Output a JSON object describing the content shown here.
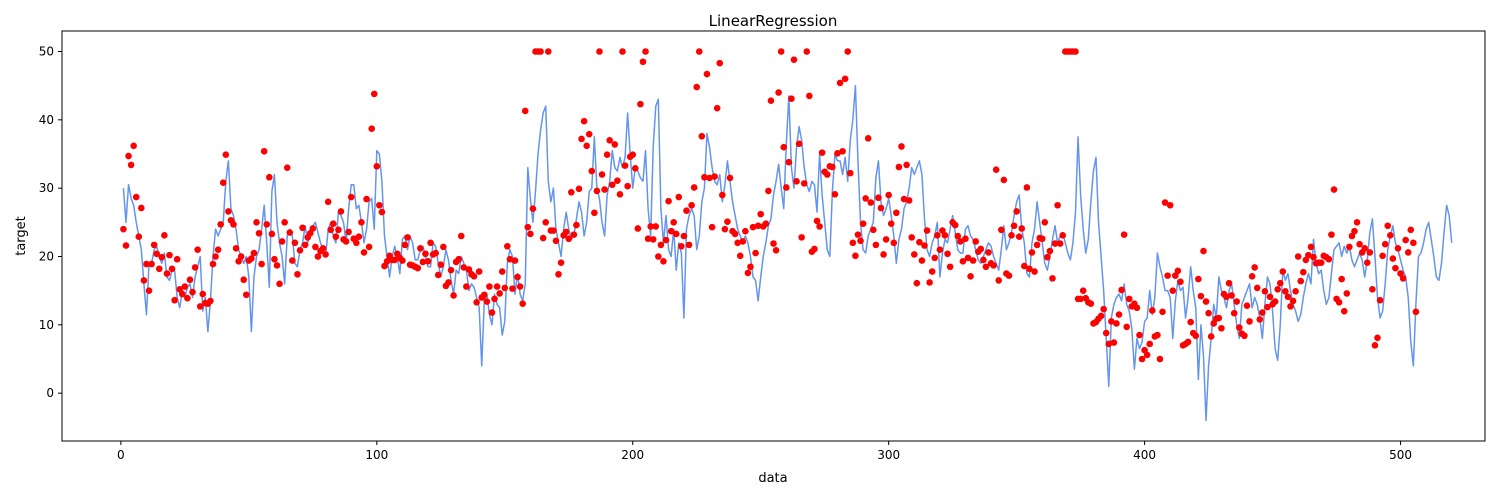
{
  "chart_data": {
    "type": "scatter",
    "title": "LinearRegression",
    "xlabel": "data",
    "ylabel": "target",
    "xlim": [
      -23,
      533
    ],
    "ylim": [
      -7,
      53
    ],
    "xticks": [
      0,
      100,
      200,
      300,
      400,
      500
    ],
    "yticks": [
      0,
      10,
      20,
      30,
      40,
      50
    ],
    "grid": false,
    "colors": {
      "predicted": "#6495ed",
      "actual": "#ff0000"
    },
    "series": [
      {
        "kind": "line",
        "x_start": 1,
        "x_step": 1,
        "values": [
          30.0,
          25.0,
          30.5,
          28.5,
          27.5,
          25.0,
          23.0,
          21.0,
          16.0,
          11.5,
          19.0,
          19.0,
          21.0,
          21.5,
          20.0,
          19.0,
          20.5,
          17.0,
          16.5,
          18.0,
          18.0,
          14.0,
          12.5,
          15.0,
          14.0,
          15.5,
          16.0,
          14.0,
          17.0,
          18.5,
          20.0,
          12.0,
          14.0,
          9.0,
          13.5,
          20.0,
          24.0,
          23.0,
          24.0,
          25.0,
          31.0,
          34.0,
          27.0,
          26.0,
          24.0,
          21.0,
          20.0,
          19.0,
          20.0,
          17.0,
          9.0,
          17.0,
          20.0,
          21.0,
          24.0,
          27.5,
          22.0,
          15.5,
          29.5,
          32.0,
          25.0,
          22.0,
          20.0,
          16.0,
          23.0,
          24.0,
          23.0,
          19.0,
          18.5,
          21.0,
          22.0,
          24.5,
          22.0,
          24.0,
          24.5,
          25.0,
          23.5,
          22.0,
          21.0,
          20.0,
          24.0,
          25.0,
          23.0,
          22.0,
          26.5,
          26.0,
          25.0,
          22.0,
          27.0,
          30.5,
          30.5,
          27.0,
          27.5,
          25.0,
          22.0,
          24.0,
          28.0,
          28.5,
          24.0,
          35.5,
          35.0,
          31.0,
          23.0,
          20.0,
          17.0,
          20.0,
          21.5,
          20.0,
          17.5,
          22.5,
          23.0,
          21.0,
          23.0,
          22.0,
          19.5,
          19.5,
          21.0,
          21.5,
          20.0,
          18.5,
          18.5,
          22.0,
          21.5,
          19.0,
          17.0,
          18.5,
          21.0,
          19.5,
          16.5,
          14.5,
          18.0,
          17.5,
          20.0,
          19.0,
          18.0,
          15.0,
          16.0,
          15.5,
          14.0,
          12.5,
          4.0,
          13.5,
          14.5,
          11.5,
          10.0,
          14.5,
          13.0,
          12.5,
          8.5,
          10.5,
          19.0,
          21.0,
          20.0,
          14.5,
          17.5,
          14.5,
          13.5,
          16.0,
          33.0,
          28.5,
          25.0,
          29.5,
          35.0,
          38.5,
          41.0,
          42.0,
          31.0,
          28.0,
          30.0,
          24.0,
          22.0,
          20.0,
          24.0,
          26.5,
          24.0,
          22.5,
          23.0,
          25.5,
          28.0,
          26.5,
          23.0,
          25.0,
          29.5,
          30.0,
          37.5,
          30.0,
          28.5,
          25.0,
          23.0,
          29.0,
          31.0,
          35.5,
          33.0,
          32.5,
          34.5,
          33.0,
          34.5,
          41.0,
          35.0,
          30.0,
          33.0,
          32.5,
          31.5,
          31.0,
          35.5,
          27.0,
          23.0,
          36.0,
          42.0,
          43.0,
          27.0,
          22.0,
          26.0,
          21.0,
          20.0,
          24.0,
          18.0,
          22.0,
          20.5,
          11.0,
          24.0,
          26.0,
          27.0,
          26.0,
          21.0,
          23.0,
          28.0,
          30.0,
          38.0,
          36.0,
          33.0,
          31.0,
          30.5,
          32.0,
          28.0,
          30.5,
          34.0,
          31.0,
          28.0,
          26.0,
          24.0,
          23.0,
          22.0,
          23.0,
          22.0,
          20.0,
          17.0,
          16.5,
          13.5,
          17.0,
          20.0,
          22.0,
          24.5,
          25.5,
          29.0,
          31.0,
          33.5,
          30.0,
          27.0,
          36.5,
          43.5,
          33.0,
          30.0,
          36.0,
          39.0,
          37.0,
          33.0,
          30.5,
          29.5,
          31.0,
          30.5,
          26.5,
          35.0,
          29.0,
          25.0,
          21.0,
          20.0,
          29.5,
          35.0,
          34.0,
          34.0,
          32.0,
          34.5,
          31.0,
          37.0,
          40.0,
          45.0,
          34.0,
          25.0,
          21.0,
          20.5,
          23.0,
          24.0,
          25.0,
          31.5,
          34.0,
          28.0,
          26.0,
          27.0,
          28.5,
          26.0,
          23.0,
          19.0,
          22.5,
          24.0,
          27.0,
          28.0,
          30.0,
          33.0,
          32.0,
          33.0,
          34.0,
          32.0,
          25.5,
          21.0,
          20.0,
          22.0,
          23.0,
          25.0,
          17.0,
          20.5,
          22.5,
          22.0,
          24.0,
          26.0,
          23.5,
          21.0,
          20.5,
          20.5,
          24.0,
          24.5,
          23.0,
          22.5,
          21.0,
          19.5,
          19.0,
          20.0,
          21.0,
          22.0,
          21.5,
          20.0,
          19.0,
          18.0,
          21.0,
          24.5,
          21.0,
          22.0,
          23.5,
          26.0,
          28.0,
          29.0,
          24.0,
          22.0,
          17.5,
          17.0,
          22.0,
          24.0,
          28.0,
          25.0,
          22.0,
          19.0,
          18.0,
          20.0,
          22.5,
          24.5,
          22.0,
          23.0,
          23.5,
          22.0,
          20.5,
          19.5,
          22.0,
          26.5,
          37.5,
          29.0,
          24.0,
          20.5,
          22.5,
          28.0,
          32.5,
          34.5,
          25.0,
          20.0,
          15.0,
          8.0,
          1.0,
          11.0,
          13.0,
          14.0,
          14.5,
          13.5,
          16.0,
          13.0,
          12.0,
          9.5,
          3.5,
          8.0,
          6.5,
          7.5,
          10.5,
          11.0,
          15.0,
          11.5,
          14.0,
          20.5,
          18.5,
          17.0,
          15.0,
          15.0,
          14.0,
          8.0,
          13.5,
          16.5,
          15.0,
          15.5,
          11.0,
          14.0,
          18.5,
          15.0,
          12.5,
          2.0,
          10.0,
          5.5,
          -4.0,
          4.0,
          8.0,
          13.0,
          11.0,
          17.0,
          15.0,
          14.0,
          12.5,
          15.0,
          16.0,
          13.0,
          10.0,
          8.0,
          13.0,
          14.0,
          15.0,
          16.0,
          12.5,
          14.0,
          13.0,
          11.0,
          8.0,
          13.0,
          17.0,
          16.0,
          12.0,
          6.5,
          4.8,
          10.0,
          18.0,
          16.5,
          17.5,
          15.0,
          13.0,
          12.0,
          10.5,
          11.5,
          14.0,
          16.0,
          17.5,
          16.0,
          22.5,
          19.0,
          17.5,
          18.0,
          15.0,
          13.0,
          14.0,
          17.5,
          21.0,
          21.5,
          22.0,
          20.0,
          21.5,
          20.5,
          21.5,
          19.5,
          18.5,
          19.5,
          20.5,
          19.5,
          17.0,
          19.5,
          23.5,
          25.5,
          20.0,
          14.0,
          11.0,
          12.0,
          16.0,
          21.0,
          23.0,
          24.5,
          22.0,
          21.0,
          19.5,
          18.0,
          17.0,
          14.0,
          7.5,
          4.0,
          13.0,
          20.0,
          20.5,
          22.0,
          24.0,
          25.0,
          22.5,
          20.0,
          17.0,
          16.5,
          19.0,
          23.5,
          27.5,
          26.0,
          22.0
        ]
      },
      {
        "kind": "points",
        "x_start": 1,
        "x_step": 1,
        "values": [
          24.0,
          21.6,
          34.7,
          33.4,
          36.2,
          28.7,
          22.9,
          27.1,
          16.5,
          18.9,
          15.0,
          18.9,
          21.7,
          20.4,
          18.2,
          19.9,
          23.1,
          17.5,
          20.2,
          18.2,
          13.6,
          19.6,
          15.2,
          14.5,
          15.6,
          13.9,
          16.6,
          14.8,
          18.4,
          21.0,
          12.7,
          14.5,
          13.2,
          13.1,
          13.5,
          18.9,
          20.0,
          21.0,
          24.7,
          30.8,
          34.9,
          26.6,
          25.3,
          24.7,
          21.2,
          19.3,
          20.0,
          16.6,
          14.4,
          19.4,
          19.7,
          20.5,
          25.0,
          23.4,
          18.9,
          35.4,
          24.7,
          31.6,
          23.3,
          19.6,
          18.7,
          16.0,
          22.2,
          25.0,
          33.0,
          23.5,
          19.4,
          22.0,
          17.4,
          20.9,
          24.2,
          21.7,
          22.8,
          23.4,
          24.1,
          21.4,
          20.0,
          20.8,
          21.2,
          20.3,
          28.0,
          23.9,
          24.8,
          22.9,
          23.9,
          26.6,
          22.5,
          22.2,
          23.6,
          28.7,
          22.6,
          22.0,
          22.9,
          25.0,
          20.6,
          28.4,
          21.4,
          38.7,
          43.8,
          33.2,
          27.5,
          26.5,
          18.6,
          19.3,
          20.1,
          19.5,
          19.5,
          20.4,
          19.8,
          19.4,
          21.7,
          22.8,
          18.8,
          18.7,
          18.5,
          18.3,
          21.2,
          19.2,
          20.4,
          19.3,
          22.0,
          20.3,
          20.5,
          17.3,
          18.8,
          21.4,
          15.7,
          16.2,
          18.0,
          14.3,
          19.2,
          19.6,
          23.0,
          18.4,
          15.6,
          18.1,
          17.4,
          17.1,
          13.3,
          17.8,
          14.0,
          14.4,
          13.4,
          15.6,
          11.8,
          13.8,
          15.6,
          14.6,
          17.8,
          15.4,
          21.5,
          19.6,
          15.3,
          19.4,
          17.0,
          15.6,
          13.1,
          41.3,
          24.3,
          23.3,
          27.0,
          50.0,
          50.0,
          50.0,
          22.7,
          25.0,
          50.0,
          23.8,
          23.8,
          22.3,
          17.4,
          19.1,
          23.1,
          23.6,
          22.6,
          29.4,
          23.2,
          24.6,
          29.9,
          37.2,
          39.8,
          36.2,
          37.9,
          32.5,
          26.4,
          29.6,
          50.0,
          32.0,
          29.8,
          34.9,
          37.0,
          30.5,
          36.4,
          31.1,
          29.1,
          50.0,
          33.3,
          30.3,
          34.6,
          34.9,
          32.9,
          24.1,
          42.3,
          48.5,
          50.0,
          22.6,
          24.4,
          22.5,
          24.4,
          20.0,
          21.7,
          19.3,
          22.4,
          28.1,
          23.7,
          25.0,
          23.3,
          28.7,
          21.5,
          23.0,
          26.7,
          21.7,
          27.5,
          30.1,
          44.8,
          50.0,
          37.6,
          31.6,
          46.7,
          31.5,
          24.3,
          31.7,
          41.7,
          48.3,
          29.0,
          24.0,
          25.1,
          31.5,
          23.7,
          23.3,
          22.0,
          20.1,
          22.2,
          23.7,
          17.6,
          18.5,
          24.3,
          20.5,
          24.5,
          26.2,
          24.4,
          24.8,
          29.6,
          42.8,
          21.9,
          20.9,
          44.0,
          50.0,
          36.0,
          30.1,
          33.8,
          43.1,
          48.8,
          31.0,
          36.5,
          22.8,
          30.7,
          50.0,
          43.5,
          20.7,
          21.1,
          25.2,
          24.4,
          35.2,
          32.4,
          32.0,
          33.2,
          33.1,
          29.1,
          35.1,
          45.4,
          35.4,
          46.0,
          50.0,
          32.2,
          22.0,
          20.1,
          23.2,
          22.3,
          24.8,
          28.5,
          37.3,
          27.9,
          23.9,
          21.7,
          28.6,
          27.1,
          20.3,
          22.5,
          29.0,
          24.8,
          22.0,
          26.4,
          33.1,
          36.1,
          28.4,
          33.4,
          28.2,
          22.8,
          20.3,
          16.1,
          22.1,
          19.4,
          21.6,
          23.8,
          16.2,
          17.8,
          19.8,
          23.1,
          21.0,
          23.8,
          23.1,
          20.4,
          18.5,
          25.0,
          24.6,
          23.0,
          22.2,
          19.3,
          22.6,
          19.8,
          17.1,
          19.4,
          22.2,
          20.7,
          21.1,
          19.5,
          18.5,
          20.6,
          19.0,
          18.7,
          32.7,
          16.5,
          23.9,
          31.2,
          17.5,
          17.2,
          23.1,
          24.5,
          26.6,
          22.9,
          24.1,
          18.6,
          30.1,
          18.2,
          20.6,
          17.8,
          21.7,
          22.7,
          22.6,
          25.0,
          19.9,
          20.8,
          16.8,
          21.9,
          27.5,
          21.9,
          23.1,
          50.0,
          50.0,
          50.0,
          50.0,
          50.0,
          13.8,
          13.8,
          15.0,
          13.9,
          13.3,
          13.1,
          10.2,
          10.4,
          10.9,
          11.3,
          12.3,
          8.8,
          7.2,
          10.5,
          7.4,
          10.2,
          11.5,
          15.1,
          23.2,
          9.7,
          13.8,
          12.7,
          13.1,
          12.5,
          8.5,
          5.0,
          6.3,
          5.6,
          7.2,
          12.1,
          8.3,
          8.5,
          5.0,
          11.9,
          27.9,
          17.2,
          27.5,
          15.0,
          17.2,
          17.9,
          16.3,
          7.0,
          7.2,
          7.5,
          10.4,
          8.8,
          8.4,
          16.7,
          14.2,
          20.8,
          13.4,
          11.7,
          8.3,
          10.2,
          10.9,
          11.0,
          9.5,
          14.5,
          14.1,
          16.1,
          14.3,
          11.7,
          13.4,
          9.6,
          8.7,
          8.4,
          12.8,
          10.5,
          17.1,
          18.4,
          15.4,
          10.8,
          11.8,
          14.9,
          12.6,
          14.1,
          13.0,
          13.4,
          15.2,
          16.1,
          17.8,
          14.9,
          14.1,
          12.7,
          13.5,
          14.9,
          20.0,
          16.4,
          17.7,
          19.5,
          20.2,
          21.4,
          19.9,
          19.0,
          19.1,
          19.1,
          20.1,
          19.9,
          19.6,
          23.2,
          29.8,
          13.8,
          13.3,
          16.7,
          12.0,
          14.6,
          21.4,
          23.0,
          23.7,
          25.0,
          21.8,
          20.6,
          21.2,
          19.1,
          20.6,
          15.2,
          7.0,
          8.1,
          13.6,
          20.1,
          21.8,
          24.5,
          23.1,
          19.7,
          18.3,
          21.2,
          17.5,
          16.8,
          22.4,
          20.6,
          23.9,
          22.0,
          11.9
        ]
      }
    ]
  }
}
